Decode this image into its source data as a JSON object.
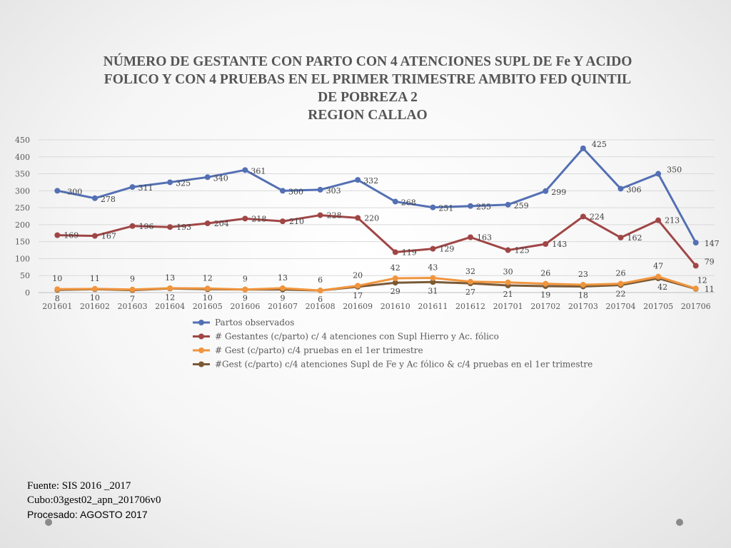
{
  "title_lines": [
    "NÚMERO DE GESTANTE  CON PARTO CON 4 ATENCIONES SUPL DE Fe Y ACIDO",
    "FOLICO  Y CON 4 PRUEBAS EN EL PRIMER TRIMESTRE AMBITO FED QUINTIL",
    "DE POBREZA  2",
    "REGION CALLAO"
  ],
  "footer": {
    "fuente": "Fuente: SIS 2016 _2017",
    "cubo": "Cubo:03gest02_apn_201706v0",
    "procesado": "Procesado: AGOSTO 2017"
  },
  "chart_data": {
    "type": "line",
    "categories": [
      "201601",
      "201602",
      "201603",
      "201604",
      "201605",
      "201606",
      "201607",
      "201608",
      "201609",
      "201610",
      "201611",
      "201612",
      "201701",
      "201702",
      "201703",
      "201704",
      "201705",
      "201706"
    ],
    "ylim": [
      0,
      450
    ],
    "yticks": [
      0,
      50,
      100,
      150,
      200,
      250,
      300,
      350,
      400,
      450
    ],
    "grid": true,
    "legend_position": "bottom",
    "series": [
      {
        "name": "Partos observados",
        "color": "#5470b4",
        "values": [
          300,
          278,
          311,
          325,
          340,
          361,
          300,
          303,
          332,
          268,
          251,
          255,
          259,
          299,
          425,
          306,
          350,
          147
        ]
      },
      {
        "name": "# Gestantes (c/parto) c/ 4 atenciones con Supl Hierro y Ac. fólico",
        "color": "#a04646",
        "values": [
          169,
          167,
          196,
          193,
          204,
          218,
          210,
          228,
          220,
          119,
          129,
          163,
          125,
          143,
          224,
          162,
          213,
          79
        ]
      },
      {
        "name": "# Gest (c/parto) c/4 pruebas en el 1er trimestre",
        "color": "#f0953e",
        "values": [
          10,
          11,
          9,
          13,
          12,
          9,
          13,
          6,
          20,
          42,
          43,
          32,
          30,
          26,
          23,
          26,
          47,
          12
        ]
      },
      {
        "name": "#Gest (c/parto) c/4 atenciones Supl de Fe y Ac fólico & c/4 pruebas en el 1er trimestre",
        "color": "#7a5a37",
        "values": [
          8,
          10,
          7,
          12,
          10,
          9,
          9,
          6,
          17,
          29,
          31,
          27,
          21,
          19,
          18,
          22,
          42,
          11
        ]
      }
    ]
  }
}
